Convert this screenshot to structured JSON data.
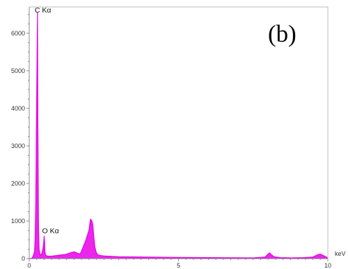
{
  "chart_data": {
    "type": "line",
    "title": "",
    "xlabel": "",
    "ylabel": "",
    "xunit": "keV",
    "panel_label": "(b)",
    "xlim": [
      0,
      10
    ],
    "ylim": [
      0,
      6700
    ],
    "x_ticks": [
      {
        "value": 0,
        "label": "0"
      },
      {
        "value": 5,
        "label": "5"
      },
      {
        "value": 10,
        "label": "10"
      }
    ],
    "y_ticks": [
      {
        "value": 0,
        "label": "0"
      },
      {
        "value": 1000,
        "label": "1000"
      },
      {
        "value": 2000,
        "label": "2000"
      },
      {
        "value": 3000,
        "label": "3000"
      },
      {
        "value": 4000,
        "label": "4000"
      },
      {
        "value": 5000,
        "label": "5000"
      },
      {
        "value": 6000,
        "label": "6000"
      }
    ],
    "grid": false,
    "legend": "none",
    "series": [
      {
        "color": "#e600e6",
        "x": [
          0.0,
          0.05,
          0.1,
          0.14,
          0.18,
          0.2,
          0.22,
          0.24,
          0.26,
          0.277,
          0.29,
          0.31,
          0.33,
          0.36,
          0.4,
          0.44,
          0.48,
          0.5,
          0.515,
          0.525,
          0.54,
          0.56,
          0.6,
          0.7,
          0.8,
          0.9,
          1.0,
          1.1,
          1.2,
          1.3,
          1.4,
          1.5,
          1.6,
          1.7,
          1.74,
          1.8,
          1.9,
          2.0,
          2.05,
          2.1,
          2.13,
          2.16,
          2.2,
          2.25,
          2.3,
          2.4,
          2.5,
          2.7,
          3.0,
          3.5,
          4.0,
          4.5,
          5.0,
          5.5,
          6.0,
          6.5,
          7.0,
          7.5,
          7.9,
          8.0,
          8.05,
          8.1,
          8.2,
          8.4,
          8.8,
          9.2,
          9.5,
          9.65,
          9.75,
          9.85,
          10.0
        ],
        "y": [
          0,
          0,
          20,
          80,
          200,
          600,
          1500,
          3400,
          5200,
          6550,
          3500,
          900,
          250,
          120,
          90,
          180,
          380,
          600,
          420,
          200,
          110,
          80,
          70,
          60,
          70,
          80,
          90,
          100,
          110,
          130,
          160,
          180,
          150,
          120,
          180,
          300,
          500,
          750,
          1050,
          1000,
          900,
          600,
          300,
          150,
          100,
          80,
          70,
          60,
          50,
          45,
          40,
          35,
          30,
          28,
          26,
          24,
          22,
          20,
          40,
          120,
          150,
          110,
          50,
          25,
          20,
          25,
          40,
          100,
          120,
          80,
          20
        ]
      }
    ],
    "annotations": [
      {
        "text": "C Kα",
        "x": 0.277,
        "y": 6550
      },
      {
        "text": "O Kα",
        "x": 0.525,
        "y": 600
      }
    ]
  }
}
